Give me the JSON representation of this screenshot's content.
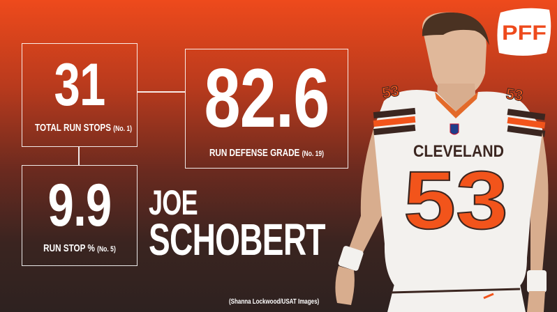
{
  "stats": {
    "total_run_stops": {
      "value": "31",
      "label": "TOTAL RUN STOPS",
      "rank": "(No. 1)"
    },
    "run_defense_grade": {
      "value": "82.6",
      "label": "RUN DEFENSE GRADE",
      "rank": "(No. 19)"
    },
    "run_stop_pct": {
      "value": "9.9",
      "label": "RUN STOP %",
      "rank": "(No. 5)"
    }
  },
  "player": {
    "first_name": "JOE",
    "last_name": "SCHOBERT",
    "jersey_team": "CLEVELAND",
    "jersey_number": "53",
    "shoulder_number": "53"
  },
  "brand": {
    "logo_text": "PFF"
  },
  "photo_credit": "(Shanna Lockwood/USAT Images)",
  "colors": {
    "accent": "#ee4a1c",
    "dark": "#2e2220",
    "jersey_orange": "#f2541b"
  }
}
